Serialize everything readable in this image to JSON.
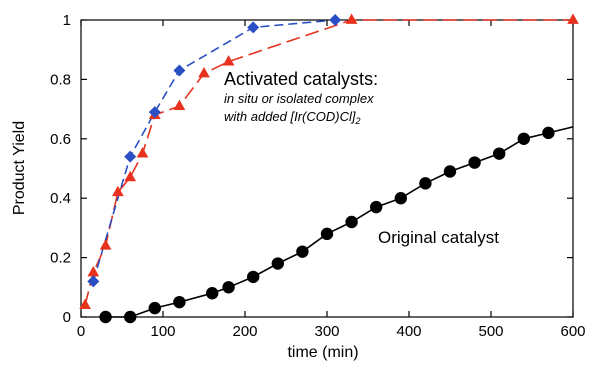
{
  "chart_data": {
    "type": "scatter",
    "xlabel": "time (min)",
    "ylabel": "Product Yield",
    "xlim": [
      0,
      600
    ],
    "ylim": [
      0,
      1
    ],
    "x_ticks": [
      0,
      100,
      200,
      300,
      400,
      500,
      600
    ],
    "y_ticks": [
      0,
      0.2,
      0.4,
      0.6,
      0.8,
      1
    ],
    "x_tick_labels": [
      "0",
      "100",
      "200",
      "300",
      "400",
      "500",
      "600"
    ],
    "y_tick_labels": [
      "0",
      "0.2",
      "0.4",
      "0.6",
      "0.8",
      "1"
    ],
    "grid": false,
    "annotations": {
      "activated_title": "Activated catalysts:",
      "activated_line1": "in situ or isolated complex",
      "activated_line2": "with added [Ir(COD)Cl]",
      "activated_line2_sub": "2",
      "original": "Original catalyst"
    },
    "series": [
      {
        "color": "#e8321e",
        "marker": "triangle",
        "line_style": "long-dash",
        "points": [
          [
            5,
            0.04
          ],
          [
            15,
            0.15
          ],
          [
            30,
            0.24
          ],
          [
            45,
            0.42
          ],
          [
            60,
            0.47
          ],
          [
            75,
            0.55
          ],
          [
            90,
            0.68
          ],
          [
            120,
            0.71
          ],
          [
            150,
            0.82
          ],
          [
            180,
            0.86
          ],
          [
            330,
            1.0
          ],
          [
            600,
            1.0
          ]
        ]
      },
      {
        "color": "#2a4fc4",
        "marker": "diamond",
        "line_style": "dash",
        "points": [
          [
            15,
            0.12
          ],
          [
            60,
            0.54
          ],
          [
            90,
            0.69
          ],
          [
            120,
            0.83
          ],
          [
            210,
            0.975
          ],
          [
            310,
            1.0
          ]
        ]
      },
      {
        "color": "#000000",
        "marker": "circle",
        "line_style": "solid",
        "points": [
          [
            30,
            0.0
          ],
          [
            60,
            0.0
          ],
          [
            90,
            0.03
          ],
          [
            120,
            0.05
          ],
          [
            160,
            0.08
          ],
          [
            180,
            0.1
          ],
          [
            210,
            0.135
          ],
          [
            240,
            0.18
          ],
          [
            270,
            0.22
          ],
          [
            300,
            0.28
          ],
          [
            330,
            0.32
          ],
          [
            360,
            0.37
          ],
          [
            390,
            0.4
          ],
          [
            420,
            0.45
          ],
          [
            450,
            0.49
          ],
          [
            480,
            0.52
          ],
          [
            510,
            0.55
          ],
          [
            540,
            0.6
          ],
          [
            570,
            0.62
          ]
        ],
        "line_end": [
          600,
          0.64
        ]
      }
    ]
  }
}
